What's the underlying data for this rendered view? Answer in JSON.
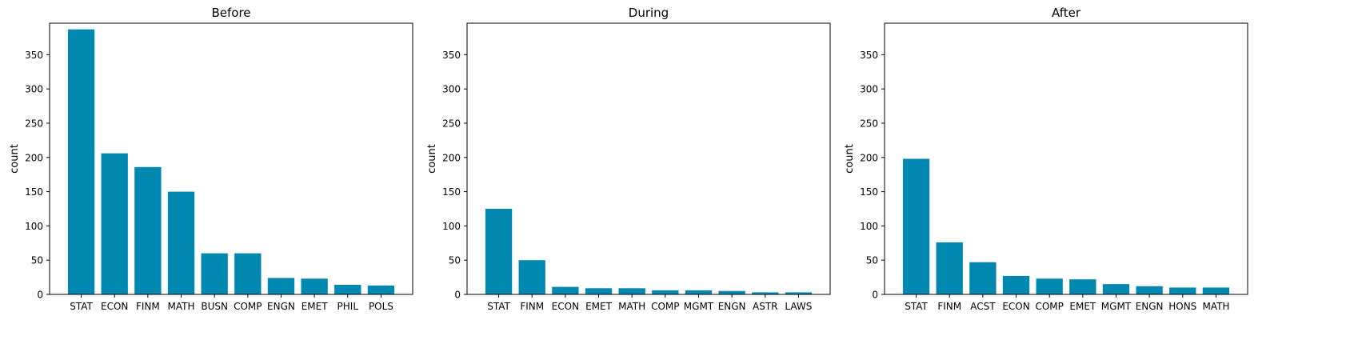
{
  "chart_data": [
    {
      "type": "bar",
      "title": "Before",
      "xlabel": "",
      "ylabel": "count",
      "categories": [
        "STAT",
        "ECON",
        "FINM",
        "MATH",
        "BUSN",
        "COMP",
        "ENGN",
        "EMET",
        "PHIL",
        "POLS"
      ],
      "values": [
        387,
        206,
        186,
        150,
        60,
        60,
        24,
        23,
        14,
        13
      ],
      "ylim": [
        0,
        396
      ],
      "yticks": [
        0,
        50,
        100,
        150,
        200,
        250,
        300,
        350
      ],
      "grid": false,
      "color": "#0088b0"
    },
    {
      "type": "bar",
      "title": "During",
      "xlabel": "",
      "ylabel": "count",
      "categories": [
        "STAT",
        "FINM",
        "ECON",
        "EMET",
        "MATH",
        "COMP",
        "MGMT",
        "ENGN",
        "ASTR",
        "LAWS"
      ],
      "values": [
        125,
        50,
        11,
        9,
        9,
        6,
        6,
        5,
        3,
        3
      ],
      "ylim": [
        0,
        396
      ],
      "yticks": [
        0,
        50,
        100,
        150,
        200,
        250,
        300,
        350
      ],
      "grid": false,
      "color": "#0088b0"
    },
    {
      "type": "bar",
      "title": "After",
      "xlabel": "",
      "ylabel": "count",
      "categories": [
        "STAT",
        "FINM",
        "ACST",
        "ECON",
        "COMP",
        "EMET",
        "MGMT",
        "ENGN",
        "HONS",
        "MATH"
      ],
      "values": [
        198,
        76,
        47,
        27,
        23,
        22,
        15,
        12,
        10,
        10
      ],
      "ylim": [
        0,
        396
      ],
      "yticks": [
        0,
        50,
        100,
        150,
        200,
        250,
        300,
        350
      ],
      "grid": false,
      "color": "#0088b0"
    }
  ]
}
